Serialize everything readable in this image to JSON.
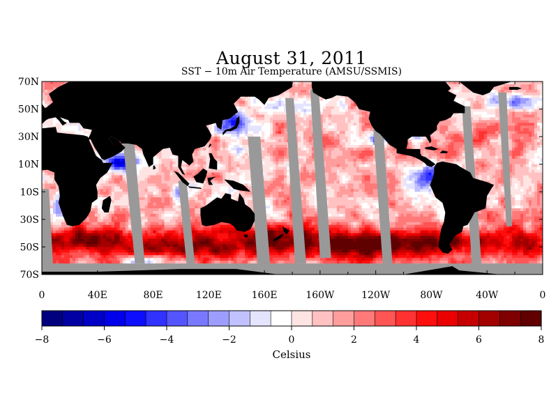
{
  "title": "August 31, 2011",
  "subtitle": "SST − 10m Air Temperature (AMSU/SSMIS)",
  "map": {
    "projection": "cylindrical equidistant",
    "lon_range": [
      0,
      360
    ],
    "lat_range": [
      -70,
      70
    ],
    "land_color": "#000000",
    "missing_color": "#999999",
    "lat_ticks": [
      "70N",
      "50N",
      "30N",
      "10N",
      "10S",
      "30S",
      "50S",
      "70S"
    ],
    "lat_values": [
      70,
      50,
      30,
      10,
      -10,
      -30,
      -50,
      -70
    ],
    "lon_ticks": [
      "0",
      "40E",
      "80E",
      "120E",
      "160E",
      "160W",
      "120W",
      "80W",
      "40W",
      "0"
    ],
    "lon_values": [
      0,
      40,
      80,
      120,
      160,
      200,
      240,
      280,
      320,
      360
    ]
  },
  "colorbar": {
    "label": "Celsius",
    "range": [
      -8,
      8
    ],
    "tick_values": [
      -8,
      -6,
      -4,
      -2,
      0,
      2,
      4,
      6,
      8
    ],
    "tick_labels": [
      "−8",
      "−6",
      "−4",
      "−2",
      "0",
      "2",
      "4",
      "6",
      "8"
    ],
    "colors": [
      "#00007f",
      "#0000a3",
      "#0000c6",
      "#0000ea",
      "#0e0eff",
      "#3232ff",
      "#5555ff",
      "#7979ff",
      "#9d9dff",
      "#c1c1ff",
      "#e4e4ff",
      "#ffffff",
      "#ffe4e4",
      "#ffc1c1",
      "#ff9d9d",
      "#ff7979",
      "#ff5555",
      "#ff3232",
      "#ff0e0e",
      "#ea0000",
      "#c60000",
      "#a30000",
      "#7f0000",
      "#600000"
    ]
  }
}
